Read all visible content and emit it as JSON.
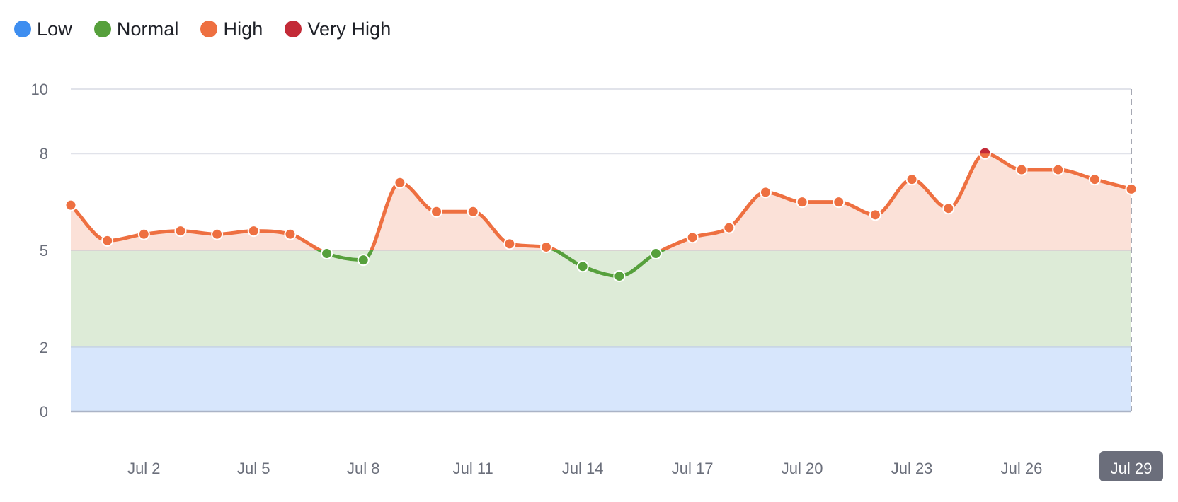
{
  "legend": {
    "items": [
      {
        "label": "Low",
        "color": "#3e8ef0"
      },
      {
        "label": "Normal",
        "color": "#56a03c"
      },
      {
        "label": "High",
        "color": "#ee7041"
      },
      {
        "label": "Very High",
        "color": "#c32a37"
      }
    ]
  },
  "colors": {
    "low_band": "#d7e6fc",
    "normal_band": "#ddebd7",
    "high_fill": "#fbe1d8",
    "grid": "#e1e3ea",
    "axis": "#aab3c6",
    "crosshair": "#a5a8b3",
    "badge_bg": "#6b6e7b"
  },
  "x_axis": {
    "ticks": [
      "Jul 2",
      "Jul 5",
      "Jul 8",
      "Jul 11",
      "Jul 14",
      "Jul 17",
      "Jul 20",
      "Jul 23",
      "Jul 26"
    ],
    "highlighted": "Jul 29"
  },
  "y_axis": {
    "ticks": [
      "0",
      "2",
      "5",
      "8",
      "10"
    ]
  },
  "chart_data": {
    "type": "line",
    "title": "",
    "xlabel": "",
    "ylabel": "",
    "ylim": [
      0,
      10
    ],
    "grid": true,
    "legend_position": "top-left",
    "thresholds": [
      {
        "name": "Low",
        "from": 0,
        "to": 2,
        "color": "#3e8ef0"
      },
      {
        "name": "Normal",
        "from": 2,
        "to": 5,
        "color": "#56a03c"
      },
      {
        "name": "High",
        "from": 5,
        "to": 8,
        "color": "#ee7041"
      },
      {
        "name": "Very High",
        "from": 8,
        "to": 10,
        "color": "#c32a37"
      }
    ],
    "x": [
      "Jun 30",
      "Jul 1",
      "Jul 2",
      "Jul 3",
      "Jul 4",
      "Jul 5",
      "Jul 6",
      "Jul 7",
      "Jul 8",
      "Jul 9",
      "Jul 10",
      "Jul 11",
      "Jul 12",
      "Jul 13",
      "Jul 14",
      "Jul 15",
      "Jul 16",
      "Jul 17",
      "Jul 18",
      "Jul 19",
      "Jul 20",
      "Jul 21",
      "Jul 22",
      "Jul 23",
      "Jul 24",
      "Jul 25",
      "Jul 26",
      "Jul 27",
      "Jul 28",
      "Jul 29"
    ],
    "series": [
      {
        "name": "Value",
        "values": [
          6.4,
          5.3,
          5.5,
          5.6,
          5.5,
          5.6,
          5.5,
          4.9,
          4.7,
          7.1,
          6.2,
          6.2,
          5.2,
          5.1,
          4.5,
          4.2,
          4.9,
          5.4,
          5.7,
          6.8,
          6.5,
          6.5,
          6.1,
          7.2,
          6.3,
          8.0,
          7.5,
          7.5,
          7.2,
          6.9
        ]
      }
    ],
    "selected_x": "Jul 29"
  }
}
